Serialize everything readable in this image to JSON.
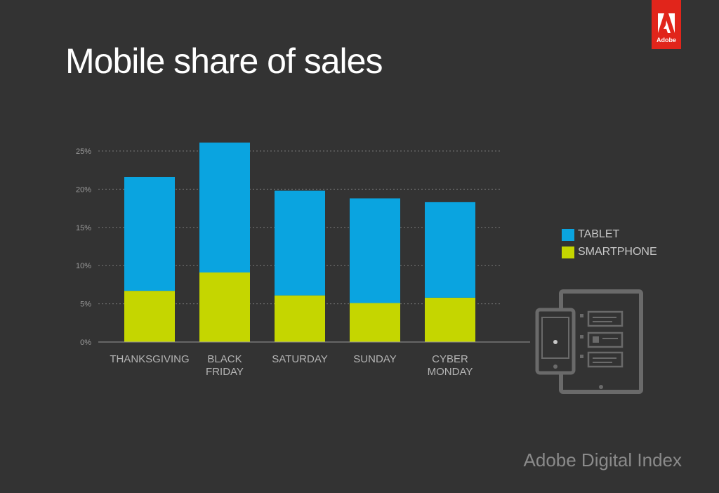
{
  "title": "Mobile share of sales",
  "brand": "Adobe",
  "footer": "Adobe Digital Index",
  "colors": {
    "background": "#333333",
    "tablet": "#0aa4e0",
    "smartphone": "#c5d600",
    "brand": "#e1251b"
  },
  "chart_data": {
    "type": "bar",
    "stacked": true,
    "categories": [
      [
        "THANKSGIVING"
      ],
      [
        "BLACK",
        "FRIDAY"
      ],
      [
        "SATURDAY"
      ],
      [
        "SUNDAY"
      ],
      [
        "CYBER",
        "MONDAY"
      ]
    ],
    "series": [
      {
        "name": "SMARTPHONE",
        "color": "#c5d600",
        "values": [
          6.7,
          9.1,
          6.1,
          5.1,
          5.8
        ]
      },
      {
        "name": "TABLET",
        "color": "#0aa4e0",
        "values": [
          14.9,
          17.0,
          13.7,
          13.7,
          12.5
        ]
      }
    ],
    "yticks": [
      "0%",
      "5%",
      "10%",
      "15%",
      "20%",
      "25%"
    ],
    "ylim": [
      0,
      25
    ],
    "grid": true,
    "legend_position": "right",
    "legend": [
      "TABLET",
      "SMARTPHONE"
    ]
  }
}
